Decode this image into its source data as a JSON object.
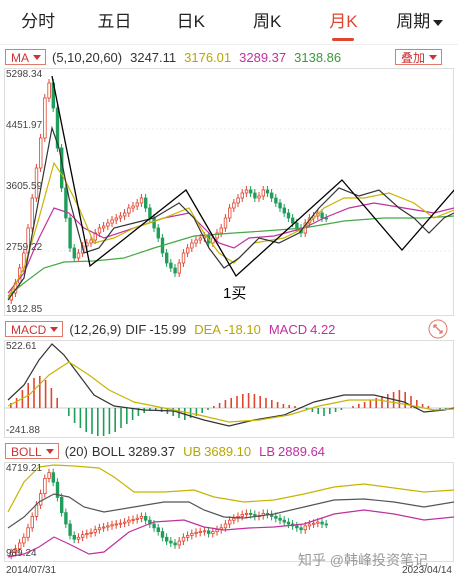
{
  "tabs": [
    {
      "label": "分时"
    },
    {
      "label": "五日"
    },
    {
      "label": "日K"
    },
    {
      "label": "周K"
    },
    {
      "label": "月K",
      "active": true
    },
    {
      "label": "周期",
      "dropdown": true
    }
  ],
  "ma_bar": {
    "label": "MA",
    "params": "(5,10,20,60)",
    "ma5": "3247.11",
    "ma10": "3176.01",
    "ma20": "3289.37",
    "ma60": "3138.86",
    "overlay_btn": "叠加"
  },
  "main_axis": {
    "top": "5298.34",
    "l2": "4451.97",
    "l3": "3605.59",
    "l4": "2759.22",
    "bottom": "1912.85"
  },
  "annotation": "1买",
  "macd_bar": {
    "label": "MACD",
    "params": "(12,26,9)",
    "dif_label": "DIF",
    "dif": "-15.99",
    "dea_label": "DEA",
    "dea": "-18.10",
    "macd_label": "MACD",
    "macd": "4.22"
  },
  "macd_axis": {
    "top": "522.61",
    "bottom": "-241.88"
  },
  "boll_bar": {
    "label": "BOLL",
    "params": "(20)",
    "boll_label": "BOLL",
    "boll": "3289.37",
    "ub_label": "UB",
    "ub": "3689.10",
    "lb_label": "LB",
    "lb": "2889.64"
  },
  "boll_axis": {
    "top": "4719.21",
    "bottom": "989.24"
  },
  "date_start": "2014/07/31",
  "date_end": "2023/04/14",
  "watermark": "知乎 @韩峰投资笔记",
  "colors": {
    "up": "#e0452f",
    "down": "#1f9e5a",
    "ma5": "#333333",
    "ma10": "#c8b400",
    "ma20": "#c0309f",
    "ma60": "#45a845"
  }
}
